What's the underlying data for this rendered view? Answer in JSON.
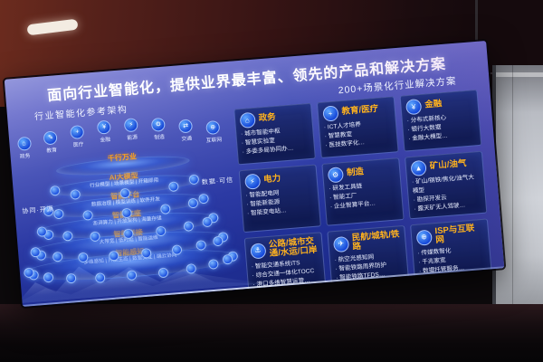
{
  "slide": {
    "title": "面向行业智能化，提供业界最丰富、领先的产品和解决方案",
    "subtitle": "200+场景化行业解决方案",
    "architecture": {
      "heading": "行业智能化参考架构",
      "side_labels": {
        "left": "协同·开源",
        "right": "数据·可信"
      },
      "industries": [
        {
          "label": "政务",
          "icon": "government-icon",
          "glyph": "⌂"
        },
        {
          "label": "教育",
          "icon": "education-icon",
          "glyph": "✎"
        },
        {
          "label": "医疗",
          "icon": "medical-icon",
          "glyph": "+"
        },
        {
          "label": "金融",
          "icon": "finance-icon",
          "glyph": "¥"
        },
        {
          "label": "能源",
          "icon": "energy-icon",
          "glyph": "⚡"
        },
        {
          "label": "制造",
          "icon": "manufacturing-icon",
          "glyph": "⚙"
        },
        {
          "label": "交通",
          "icon": "transport-icon",
          "glyph": "⇄"
        },
        {
          "label": "互联网",
          "icon": "internet-icon",
          "glyph": "⊕"
        }
      ],
      "tiers": [
        {
          "label": "千行万业",
          "sub": "",
          "nodes": 0
        },
        {
          "label": "AI大模型",
          "sub": "行业模型 | 场景模型 | 开箱即用",
          "nodes": 5
        },
        {
          "label": "智能平台",
          "sub": "数据治理 | 模型训练 | 软件开发",
          "nodes": 7
        },
        {
          "label": "智能底座",
          "sub": "澎湃算力 | 开放架构 | 海量存储",
          "nodes": 9
        },
        {
          "label": "智能联接",
          "sub": "大带宽 | 低时延 | 智能运维",
          "nodes": 10
        },
        {
          "label": "智能感知",
          "sub": "多维感知 | 开放生态 | 数智交互 | 端云协同",
          "nodes": 11
        }
      ]
    },
    "cards": [
      {
        "title": "政务",
        "icon": "government-card-icon",
        "glyph": "⌂",
        "bullets": [
          "城市智能中枢",
          "智慧实验室",
          "多委多局协同办…"
        ]
      },
      {
        "title": "教育/医疗",
        "icon": "education-medical-card-icon",
        "glyph": "+",
        "bullets": [
          "ICT人才培养",
          "智慧教室",
          "医技数字化…"
        ]
      },
      {
        "title": "金融",
        "icon": "finance-card-icon",
        "glyph": "¥",
        "bullets": [
          "分布式新核心",
          "银行大数据",
          "金融大模型…"
        ]
      },
      {
        "title": "电力",
        "icon": "power-card-icon",
        "glyph": "⚡",
        "bullets": [
          "智能配电网",
          "智能新能源",
          "智能变电站…"
        ]
      },
      {
        "title": "制造",
        "icon": "manufacturing-card-icon",
        "glyph": "⚙",
        "bullets": [
          "研发工具链",
          "智能工厂",
          "企业智算平台…"
        ]
      },
      {
        "title": "矿山/油气",
        "icon": "mining-oil-card-icon",
        "glyph": "▲",
        "bullets": [
          "矿山/钢铁/焦化/油气大模型",
          "勘探开发云",
          "露天矿无人驾驶…"
        ]
      },
      {
        "title": "公路/城市交通/水运/口岸",
        "icon": "road-waterway-card-icon",
        "glyph": "⚓",
        "bullets": [
          "智能交通系统ITS",
          "综合交通一体化TOCC",
          "港口多维智慧运营…"
        ]
      },
      {
        "title": "民航/城轨/铁路",
        "icon": "aviation-rail-card-icon",
        "glyph": "✈",
        "bullets": [
          "航空光感知网",
          "智能铁路周界防护",
          "智能铁路TFDS…"
        ]
      },
      {
        "title": "ISP与互联网",
        "icon": "isp-internet-card-icon",
        "glyph": "⊕",
        "bullets": [
          "传媒数智化",
          "千兆家宽",
          "数据托管服务…"
        ]
      }
    ],
    "more_indicator": "•••",
    "colors": {
      "accent_orange": "#ffa41c",
      "screen_blue": "#2c3aa4",
      "card_navy": "#131f60"
    }
  }
}
